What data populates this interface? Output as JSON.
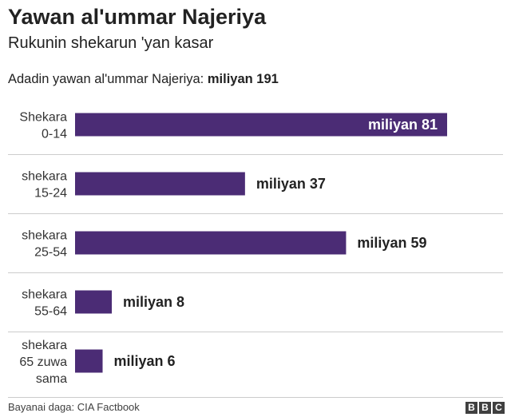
{
  "title": "Yawan al'ummar Najeriya",
  "subtitle": "Rukunin shekarun 'yan kasar",
  "total": {
    "label": "Adadin yawan al'ummar Najeriya:",
    "value": "miliyan 191"
  },
  "source": "Bayanai daga: CIA Factbook",
  "logo": [
    "B",
    "B",
    "C"
  ],
  "colors": {
    "bar": "#4b2c75",
    "bar_label_inside": "#ffffff",
    "bar_label_outside": "#222222",
    "separator": "#cccccc"
  },
  "chart_data": {
    "type": "bar",
    "orientation": "horizontal",
    "categories": [
      [
        "Shekara",
        "0-14"
      ],
      [
        "shekara",
        "15-24"
      ],
      [
        "shekara",
        "25-54"
      ],
      [
        "shekara",
        "55-64"
      ],
      [
        "shekara",
        "65 zuwa",
        "sama"
      ]
    ],
    "values": [
      81,
      37,
      59,
      8,
      6
    ],
    "value_labels": [
      "miliyan 81",
      "miliyan 37",
      "miliyan 59",
      "miliyan 8",
      "miliyan 6"
    ],
    "unit": "miliyan",
    "xlim": [
      0,
      81
    ],
    "grid": false
  }
}
